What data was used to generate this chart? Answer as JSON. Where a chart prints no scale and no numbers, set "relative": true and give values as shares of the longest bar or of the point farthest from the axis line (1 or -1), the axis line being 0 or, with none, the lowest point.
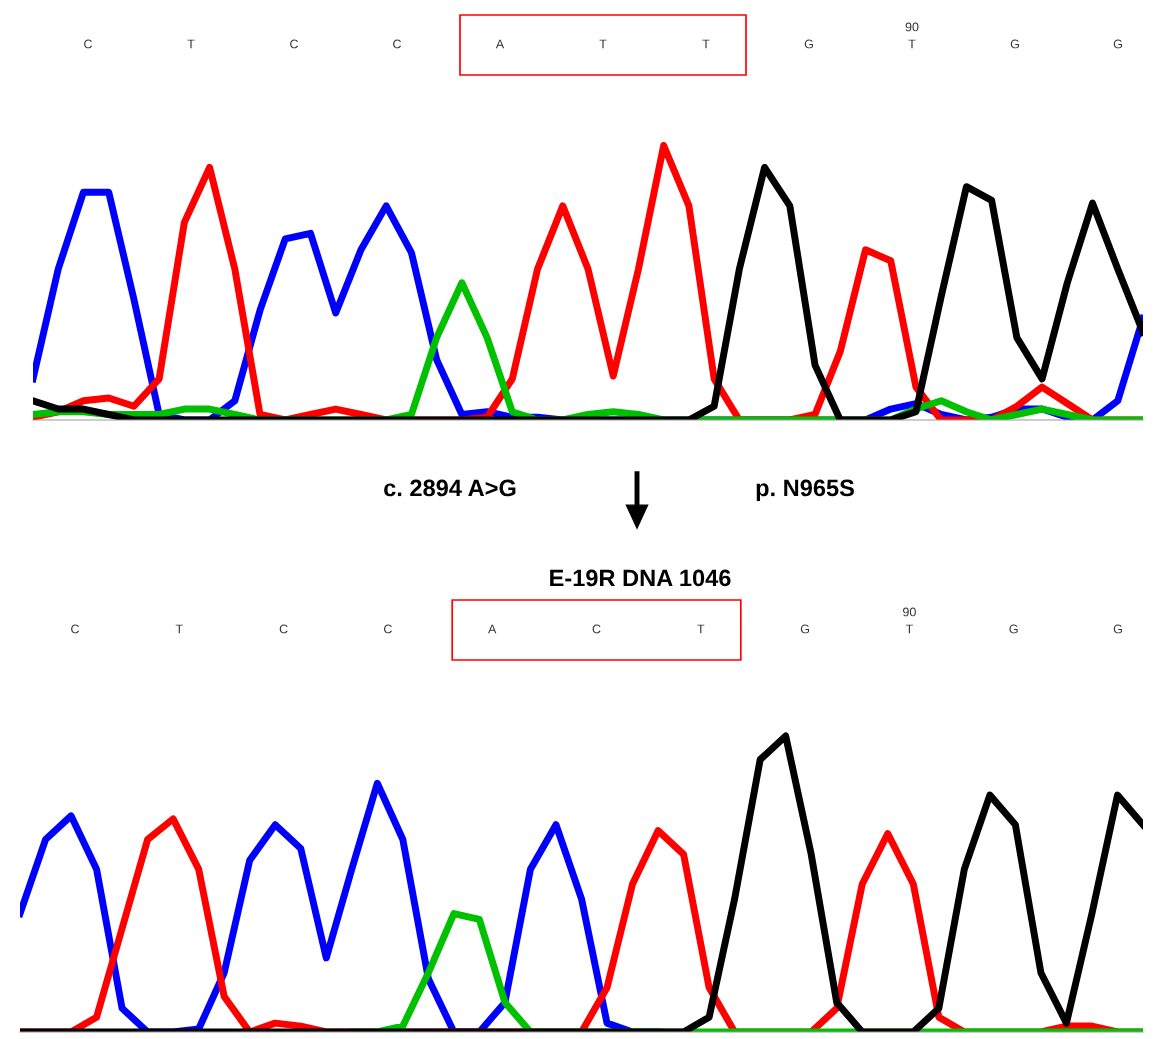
{
  "chart_data": [
    {
      "type": "line",
      "relative": true,
      "legend": false,
      "categories": [
        null,
        null,
        null,
        null,
        null,
        null,
        null,
        null,
        null,
        null,
        null,
        null,
        null,
        null,
        null,
        null,
        null,
        null,
        null,
        null,
        null,
        null,
        null,
        null,
        null,
        null,
        null,
        null,
        null,
        null,
        null,
        null,
        null,
        null,
        null,
        null,
        null,
        null,
        null,
        null,
        null,
        null,
        null,
        null,
        null
      ],
      "series": [
        {
          "color": "#0000ff",
          "values": [
            0.15,
            0.55,
            0.83,
            0.83,
            0.44,
            0.02,
            0,
            0,
            0.07,
            0.4,
            0.66,
            0.68,
            0.39,
            0.62,
            0.78,
            0.61,
            0.22,
            0.02,
            0.03,
            0.01,
            0.01,
            0,
            0,
            0,
            0,
            0,
            0,
            0,
            0,
            0,
            0,
            0,
            0,
            0,
            0.04,
            0.06,
            0.02,
            0,
            0.01,
            0.04,
            0.04,
            0.01,
            0,
            0.07,
            0.37
          ]
        },
        {
          "color": "#ff0000",
          "values": [
            0.01,
            0.03,
            0.07,
            0.08,
            0.05,
            0.15,
            0.72,
            0.92,
            0.55,
            0.02,
            0,
            0.02,
            0.04,
            0.02,
            0,
            0,
            0,
            0,
            0.01,
            0.15,
            0.55,
            0.78,
            0.55,
            0.16,
            0.55,
            1.0,
            0.78,
            0.15,
            0,
            0,
            0,
            0.02,
            0.25,
            0.62,
            0.58,
            0.12,
            0,
            0,
            0,
            0.05,
            0.12,
            0.06,
            0,
            0,
            0
          ]
        },
        {
          "color": "#00c000",
          "values": [
            0.02,
            0.03,
            0.03,
            0.02,
            0.02,
            0.02,
            0.04,
            0.04,
            0.02,
            0,
            0,
            0,
            0,
            0,
            0,
            0.02,
            0.3,
            0.5,
            0.3,
            0.03,
            0,
            0,
            0.02,
            0.03,
            0.02,
            0,
            0,
            0,
            0,
            0,
            0,
            0,
            0,
            0,
            0,
            0.04,
            0.07,
            0.03,
            0,
            0.02,
            0.04,
            0.02,
            0,
            0,
            0
          ]
        },
        {
          "color": "#000000",
          "values": [
            0.07,
            0.04,
            0.04,
            0.02,
            0,
            0,
            0,
            0,
            0,
            0,
            0,
            0,
            0,
            0,
            0,
            0,
            0,
            0,
            0,
            0,
            0,
            0,
            0,
            0,
            0,
            0,
            0,
            0.05,
            0.55,
            0.92,
            0.78,
            0.2,
            0,
            0,
            0,
            0.03,
            0.45,
            0.85,
            0.8,
            0.3,
            0.15,
            0.5,
            0.79,
            0.55,
            0.32
          ]
        }
      ],
      "annotations": [
        "C",
        "T",
        "C",
        "C",
        "A",
        "T",
        "T",
        "G",
        "T",
        "G",
        "G",
        "90",
        "c. 2894 A>G",
        "p. N965S"
      ]
    },
    {
      "type": "line",
      "relative": true,
      "legend": false,
      "title": "E-19R DNA 1046",
      "categories": [
        null,
        null,
        null,
        null,
        null,
        null,
        null,
        null,
        null,
        null,
        null,
        null,
        null,
        null,
        null,
        null,
        null,
        null,
        null,
        null,
        null,
        null,
        null,
        null,
        null,
        null,
        null,
        null,
        null,
        null,
        null,
        null,
        null,
        null,
        null,
        null,
        null,
        null,
        null,
        null,
        null,
        null,
        null,
        null,
        null
      ],
      "series": [
        {
          "color": "#0000ff",
          "values": [
            0.4,
            0.65,
            0.73,
            0.55,
            0.08,
            0,
            0,
            0.01,
            0.2,
            0.58,
            0.7,
            0.62,
            0.25,
            0.55,
            0.84,
            0.65,
            0.18,
            0,
            0,
            0.1,
            0.55,
            0.7,
            0.45,
            0.03,
            0,
            0,
            null,
            null,
            null,
            null,
            null,
            null,
            null,
            null,
            null,
            null,
            null,
            null,
            null,
            null,
            null,
            null,
            null,
            null,
            null
          ]
        },
        {
          "color": "#ff0000",
          "values": [
            0,
            0,
            0,
            0.05,
            0.35,
            0.65,
            0.72,
            0.55,
            0.12,
            0,
            0.03,
            0.02,
            0,
            0,
            0,
            0,
            0,
            0,
            0,
            0,
            0,
            0,
            0,
            0.15,
            0.5,
            0.68,
            0.6,
            0.15,
            0,
            0,
            0,
            0,
            0.08,
            0.5,
            0.67,
            0.5,
            0.05,
            0,
            0,
            0,
            0,
            0.02,
            0.02,
            0,
            0
          ]
        },
        {
          "color": "#00c000",
          "values": [
            null,
            null,
            null,
            null,
            null,
            null,
            null,
            null,
            null,
            null,
            null,
            null,
            null,
            0,
            0,
            0.02,
            0.2,
            0.4,
            0.38,
            0.1,
            0,
            0,
            0,
            0,
            0,
            0,
            0,
            0,
            0,
            0,
            0,
            0,
            0,
            0,
            0,
            0,
            0,
            0,
            0,
            0,
            0,
            0,
            0,
            0,
            0
          ]
        },
        {
          "color": "#000000",
          "values": [
            0,
            0,
            0,
            0,
            0,
            0,
            0,
            0,
            0,
            0,
            0,
            0,
            0,
            0,
            0,
            0,
            0,
            0,
            0,
            0,
            0,
            0,
            0,
            0,
            0,
            0,
            0,
            0.05,
            0.45,
            0.92,
            1.0,
            0.6,
            0.1,
            0,
            0,
            0,
            0.08,
            0.55,
            0.8,
            0.7,
            0.2,
            0.03,
            0.4,
            0.8,
            0.7
          ]
        }
      ],
      "annotations": [
        "C",
        "T",
        "C",
        "C",
        "A",
        "C",
        "T",
        "G",
        "T",
        "G",
        "G",
        "90"
      ]
    }
  ]
}
